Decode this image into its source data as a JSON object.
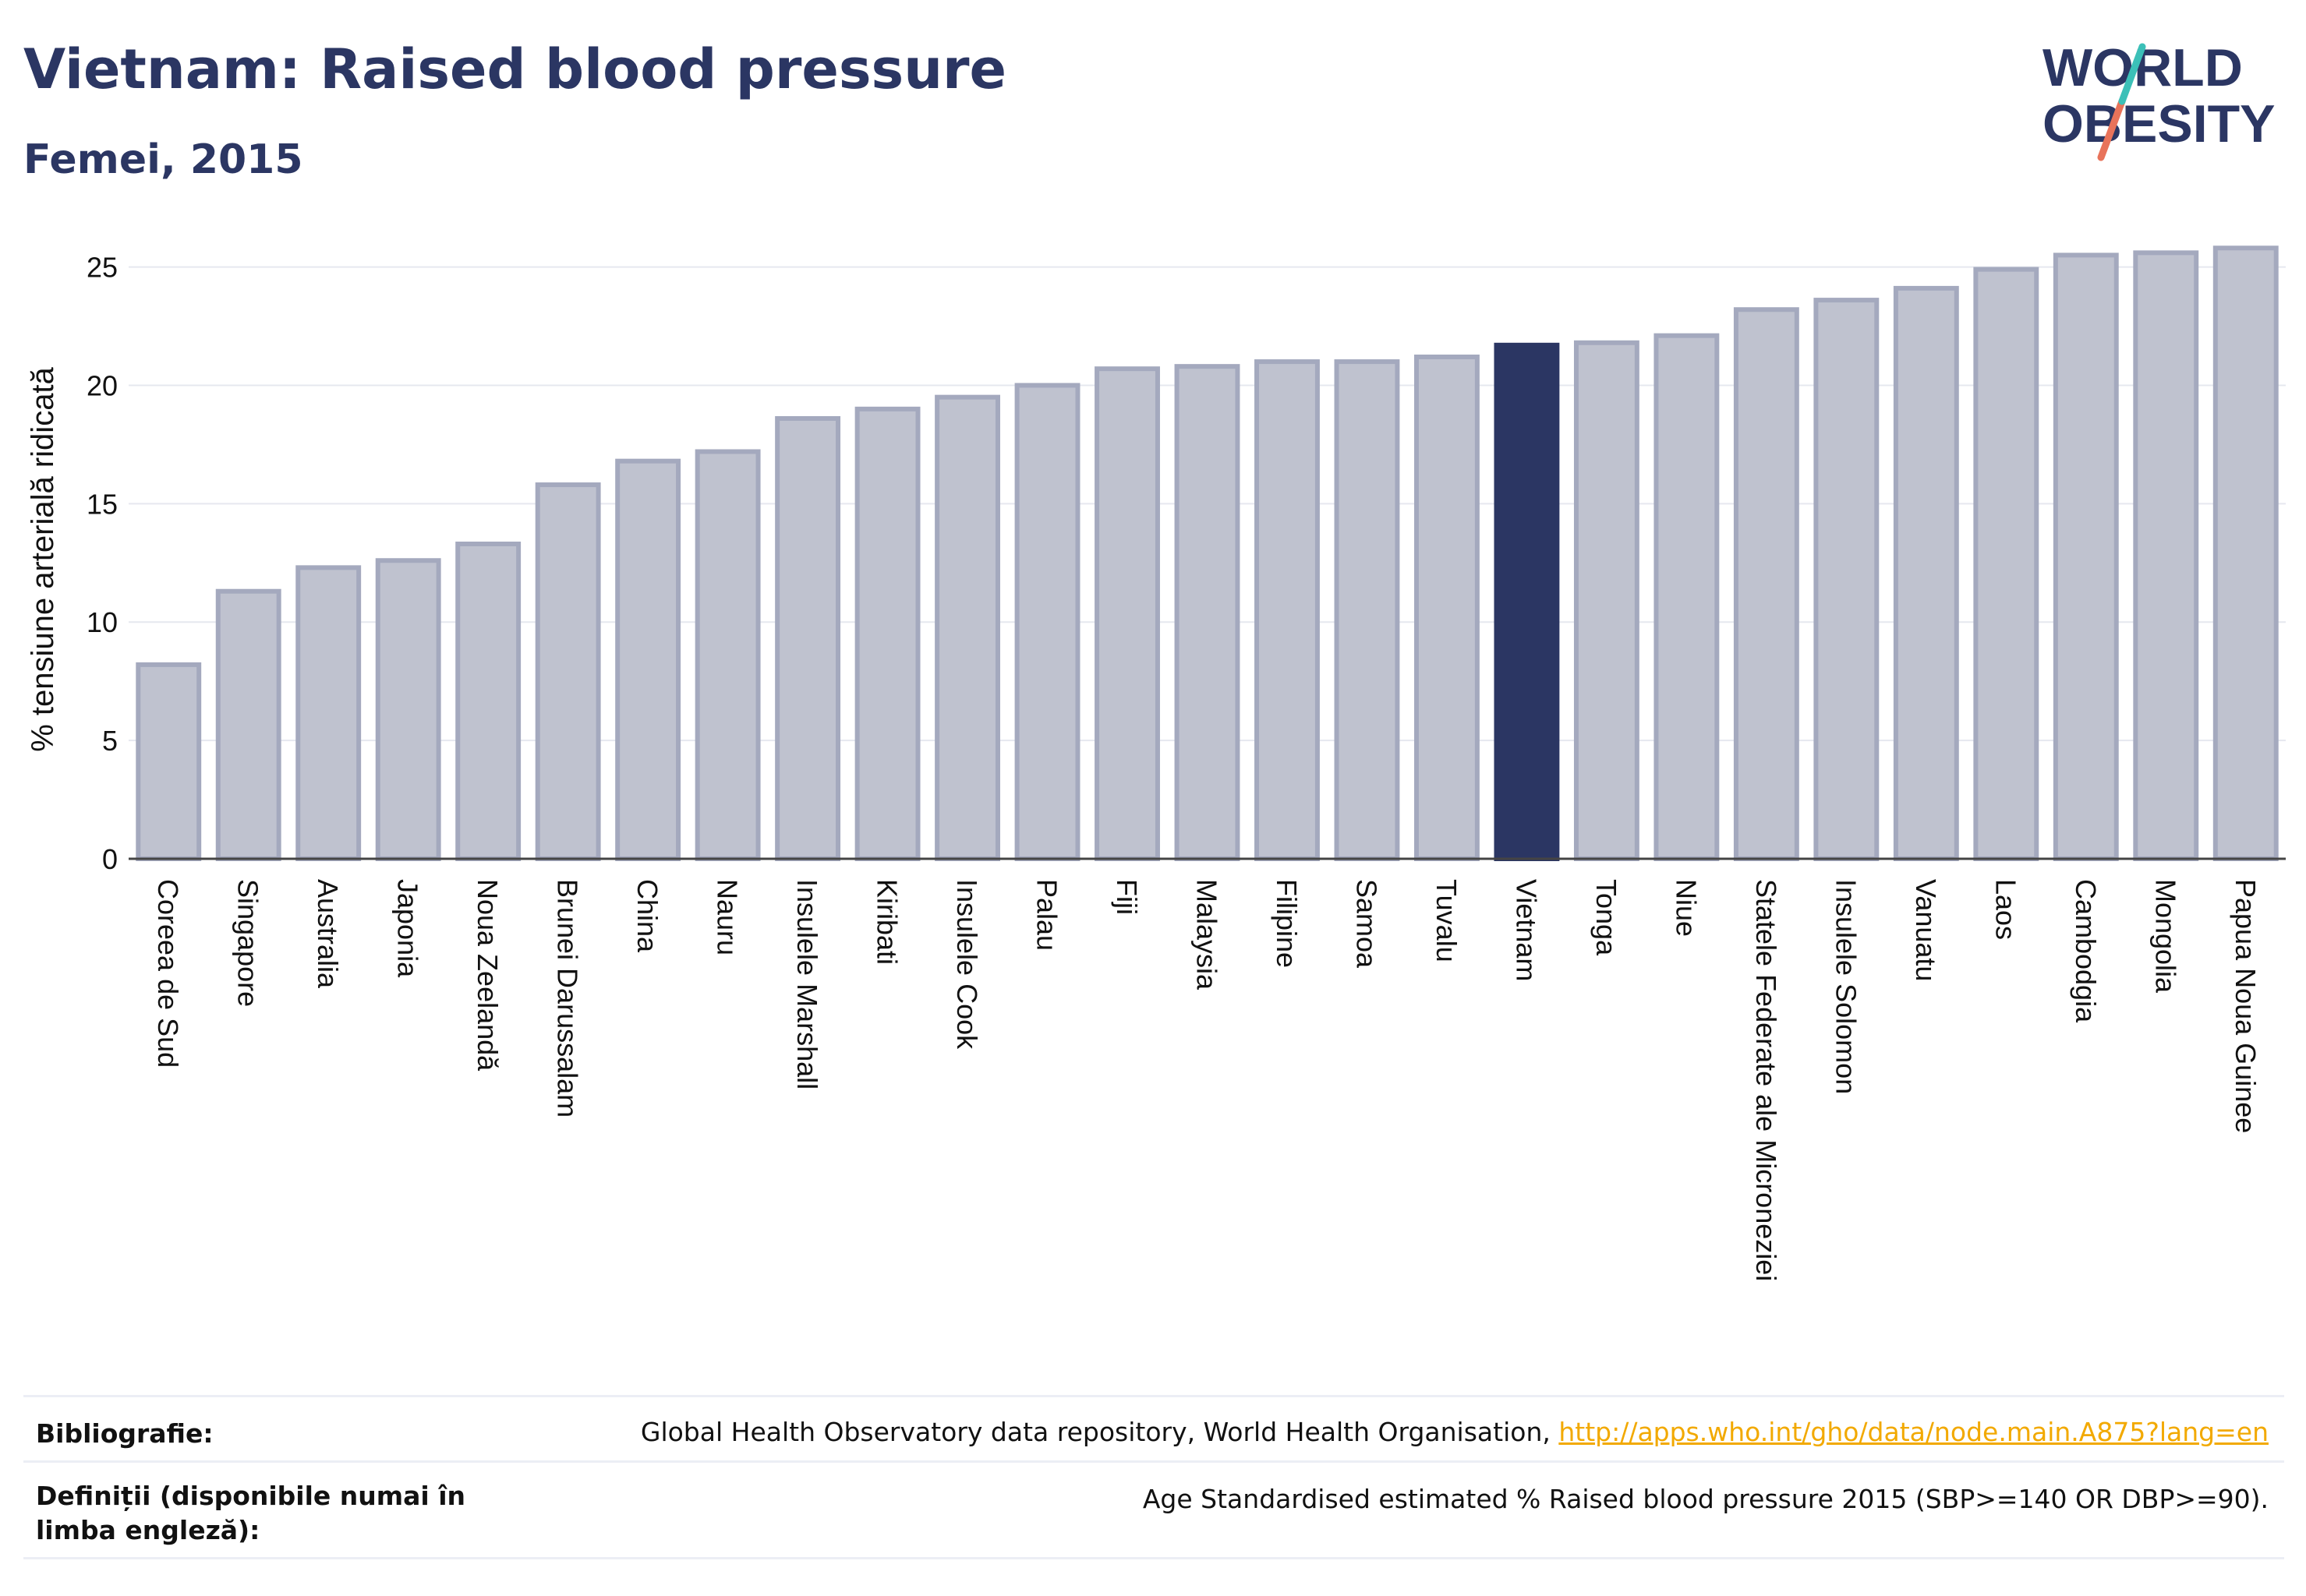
{
  "header": {
    "title": "Vietnam: Raised blood pressure",
    "subtitle": "Femei, 2015"
  },
  "logo": {
    "line1": "WORLD",
    "line2": "OBESITY"
  },
  "chart_data": {
    "type": "bar",
    "ylabel": "% tensiune arterială ridicată",
    "xlabel": "",
    "ylim": [
      0,
      26.5
    ],
    "yticks": [
      0,
      5,
      10,
      15,
      20,
      25
    ],
    "grid": true,
    "highlight": "Vietnam",
    "colors": {
      "bar": "#bfc2cf",
      "bar_border": "#a4a9be",
      "highlight": "#2b3663",
      "grid": "#e6e8ef",
      "axis": "#444444"
    },
    "categories": [
      "Coreea de Sud",
      "Singapore",
      "Australia",
      "Japonia",
      "Noua Zeelandă",
      "Brunei Darussalam",
      "China",
      "Nauru",
      "Insulele Marshall",
      "Kiribati",
      "Insulele Cook",
      "Palau",
      "Fiji",
      "Malaysia",
      "Filipine",
      "Samoa",
      "Tuvalu",
      "Vietnam",
      "Tonga",
      "Niue",
      "Statele Federate ale Microneziei",
      "Insulele Solomon",
      "Vanuatu",
      "Laos",
      "Cambodgia",
      "Mongolia",
      "Papua Noua Guinee"
    ],
    "values": [
      8.2,
      11.3,
      12.3,
      12.6,
      13.3,
      15.8,
      16.8,
      17.2,
      18.6,
      19.0,
      19.5,
      20.0,
      20.7,
      20.8,
      21.0,
      21.0,
      21.2,
      21.7,
      21.8,
      22.1,
      23.2,
      23.6,
      24.1,
      24.9,
      25.5,
      25.6,
      25.8
    ]
  },
  "footer": {
    "bibliography_label": "Bibliografie:",
    "bibliography_text": "Global Health Observatory data repository, World Health Organisation, ",
    "bibliography_link": "http://apps.who.int/gho/data/node.main.A875?lang=en",
    "definitions_label": "Definiții (disponibile numai în limba engleză):",
    "definitions_text": "Age Standardised estimated % Raised blood pressure 2015 (SBP>=140 OR DBP>=90)."
  }
}
